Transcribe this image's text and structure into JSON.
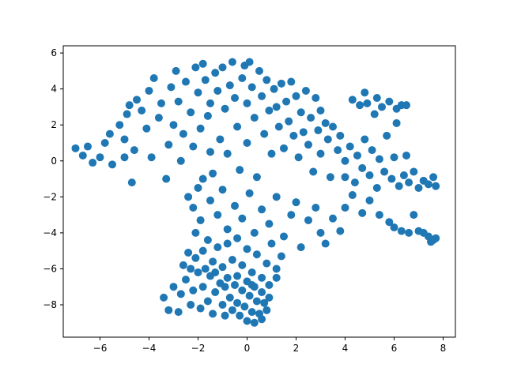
{
  "chart_data": {
    "type": "scatter",
    "title": "",
    "xlabel": "",
    "ylabel": "",
    "xlim": [
      -7.5,
      8.5
    ],
    "ylim": [
      -9.8,
      6.4
    ],
    "x_ticks": [
      -6,
      -4,
      -2,
      0,
      2,
      4,
      6,
      8
    ],
    "y_ticks": [
      -8,
      -6,
      -4,
      -2,
      0,
      2,
      4,
      6
    ],
    "x_tick_labels": [
      "−6",
      "−4",
      "−2",
      "0",
      "2",
      "4",
      "6",
      "8"
    ],
    "y_tick_labels": [
      "−8",
      "−6",
      "−4",
      "−2",
      "0",
      "2",
      "4",
      "6"
    ],
    "grid": false,
    "legend": "none",
    "marker_color": "#1f77b4",
    "marker": "circle",
    "series": [
      {
        "points": [
          [
            -7.0,
            0.7
          ],
          [
            -6.7,
            0.3
          ],
          [
            -6.5,
            0.8
          ],
          [
            -6.3,
            -0.1
          ],
          [
            -6.0,
            0.2
          ],
          [
            -5.8,
            1.0
          ],
          [
            -5.6,
            1.5
          ],
          [
            -5.5,
            -0.2
          ],
          [
            -5.2,
            2.0
          ],
          [
            -5.0,
            1.2
          ],
          [
            -5.0,
            0.2
          ],
          [
            -4.9,
            2.6
          ],
          [
            -4.8,
            3.1
          ],
          [
            -4.7,
            -1.2
          ],
          [
            -4.6,
            0.6
          ],
          [
            -4.5,
            3.4
          ],
          [
            -4.3,
            2.8
          ],
          [
            -4.1,
            1.8
          ],
          [
            -4.0,
            3.9
          ],
          [
            -3.9,
            0.2
          ],
          [
            -3.8,
            4.6
          ],
          [
            -3.6,
            2.4
          ],
          [
            -3.5,
            3.2
          ],
          [
            -3.3,
            -1.0
          ],
          [
            -3.2,
            0.9
          ],
          [
            -3.1,
            4.1
          ],
          [
            -3.0,
            2.0
          ],
          [
            -2.9,
            5.0
          ],
          [
            -2.8,
            3.3
          ],
          [
            -2.7,
            0.0
          ],
          [
            -2.6,
            1.5
          ],
          [
            -2.5,
            4.4
          ],
          [
            -2.4,
            -2.0
          ],
          [
            -2.3,
            2.7
          ],
          [
            -2.2,
            0.8
          ],
          [
            -2.1,
            5.2
          ],
          [
            -2.0,
            3.8
          ],
          [
            -2.0,
            -1.5
          ],
          [
            -1.9,
            1.8
          ],
          [
            -1.8,
            5.4
          ],
          [
            -1.7,
            4.5
          ],
          [
            -1.6,
            2.5
          ],
          [
            -1.5,
            0.5
          ],
          [
            -1.5,
            3.2
          ],
          [
            -1.4,
            -0.7
          ],
          [
            -1.3,
            4.9
          ],
          [
            -1.2,
            3.9
          ],
          [
            -1.1,
            1.2
          ],
          [
            -1.0,
            5.2
          ],
          [
            -0.9,
            2.9
          ],
          [
            -0.8,
            0.4
          ],
          [
            -0.7,
            4.2
          ],
          [
            -0.6,
            5.5
          ],
          [
            -0.5,
            3.5
          ],
          [
            -0.4,
            1.9
          ],
          [
            -0.3,
            -0.5
          ],
          [
            -0.2,
            4.6
          ],
          [
            -0.1,
            5.3
          ],
          [
            0.0,
            3.2
          ],
          [
            0.0,
            1.0
          ],
          [
            0.1,
            5.5
          ],
          [
            0.2,
            4.1
          ],
          [
            0.3,
            2.4
          ],
          [
            0.4,
            -0.9
          ],
          [
            0.5,
            5.0
          ],
          [
            0.6,
            3.6
          ],
          [
            0.7,
            1.5
          ],
          [
            0.8,
            4.5
          ],
          [
            0.9,
            2.8
          ],
          [
            1.0,
            0.4
          ],
          [
            1.1,
            4.0
          ],
          [
            1.2,
            3.0
          ],
          [
            1.3,
            1.9
          ],
          [
            1.4,
            4.3
          ],
          [
            1.5,
            0.7
          ],
          [
            1.6,
            3.3
          ],
          [
            1.7,
            2.2
          ],
          [
            1.8,
            4.4
          ],
          [
            1.9,
            1.4
          ],
          [
            2.0,
            3.6
          ],
          [
            2.1,
            0.2
          ],
          [
            2.2,
            2.7
          ],
          [
            2.3,
            1.6
          ],
          [
            2.4,
            3.9
          ],
          [
            2.5,
            0.9
          ],
          [
            2.6,
            2.4
          ],
          [
            2.7,
            -0.6
          ],
          [
            2.8,
            3.5
          ],
          [
            2.9,
            1.7
          ],
          [
            3.0,
            2.8
          ],
          [
            3.0,
            0.4
          ],
          [
            3.2,
            2.1
          ],
          [
            3.3,
            1.2
          ],
          [
            3.4,
            -0.9
          ],
          [
            3.5,
            1.9
          ],
          [
            3.7,
            0.6
          ],
          [
            3.8,
            1.4
          ],
          [
            4.0,
            0.0
          ],
          [
            4.0,
            -0.9
          ],
          [
            4.2,
            0.8
          ],
          [
            4.3,
            3.4
          ],
          [
            4.4,
            -1.2
          ],
          [
            4.5,
            0.3
          ],
          [
            4.6,
            3.1
          ],
          [
            4.7,
            -0.4
          ],
          [
            4.8,
            1.2
          ],
          [
            4.9,
            3.2
          ],
          [
            5.0,
            -0.8
          ],
          [
            5.1,
            0.6
          ],
          [
            5.2,
            2.6
          ],
          [
            5.3,
            -1.5
          ],
          [
            5.4,
            0.1
          ],
          [
            5.5,
            3.0
          ],
          [
            5.6,
            -0.6
          ],
          [
            5.7,
            1.4
          ],
          [
            5.8,
            3.3
          ],
          [
            5.9,
            -1.0
          ],
          [
            6.0,
            0.2
          ],
          [
            6.1,
            2.9
          ],
          [
            6.2,
            -1.4
          ],
          [
            6.3,
            3.1
          ],
          [
            6.4,
            -0.8
          ],
          [
            6.5,
            0.3
          ],
          [
            6.6,
            -1.2
          ],
          [
            6.8,
            -0.6
          ],
          [
            7.0,
            -1.5
          ],
          [
            7.2,
            -1.1
          ],
          [
            7.4,
            -1.3
          ],
          [
            7.6,
            -0.9
          ],
          [
            7.7,
            -1.4
          ],
          [
            4.8,
            3.8
          ],
          [
            5.3,
            3.5
          ],
          [
            6.1,
            2.1
          ],
          [
            6.5,
            3.1
          ],
          [
            -1.8,
            -1.0
          ],
          [
            -1.5,
            -2.2
          ],
          [
            -1.2,
            -3.0
          ],
          [
            -1.0,
            -1.6
          ],
          [
            -0.8,
            -3.8
          ],
          [
            -0.5,
            -2.5
          ],
          [
            -0.2,
            -3.2
          ],
          [
            0.1,
            -1.8
          ],
          [
            0.3,
            -4.0
          ],
          [
            0.6,
            -2.7
          ],
          [
            0.9,
            -3.5
          ],
          [
            1.2,
            -2.0
          ],
          [
            1.5,
            -4.2
          ],
          [
            1.8,
            -3.0
          ],
          [
            2.0,
            -2.3
          ],
          [
            2.2,
            -4.8
          ],
          [
            2.5,
            -3.3
          ],
          [
            2.8,
            -2.6
          ],
          [
            3.0,
            -4.0
          ],
          [
            3.2,
            -4.6
          ],
          [
            3.5,
            -3.2
          ],
          [
            3.8,
            -3.9
          ],
          [
            4.0,
            -2.6
          ],
          [
            4.3,
            -1.9
          ],
          [
            4.7,
            -2.9
          ],
          [
            5.0,
            -2.2
          ],
          [
            5.4,
            -3.0
          ],
          [
            5.8,
            -3.4
          ],
          [
            6.0,
            -3.7
          ],
          [
            6.3,
            -3.9
          ],
          [
            6.6,
            -4.0
          ],
          [
            6.8,
            -3.0
          ],
          [
            7.0,
            -3.9
          ],
          [
            7.2,
            -4.0
          ],
          [
            7.4,
            -4.2
          ],
          [
            7.5,
            -4.5
          ],
          [
            7.6,
            -4.4
          ],
          [
            7.7,
            -4.3
          ],
          [
            -2.2,
            -2.6
          ],
          [
            -2.1,
            -4.0
          ],
          [
            -1.9,
            -3.3
          ],
          [
            -1.8,
            -5.0
          ],
          [
            -1.6,
            -4.4
          ],
          [
            -1.4,
            -5.6
          ],
          [
            -1.2,
            -4.8
          ],
          [
            -1.0,
            -5.9
          ],
          [
            -0.8,
            -4.6
          ],
          [
            -0.6,
            -5.5
          ],
          [
            -0.4,
            -4.3
          ],
          [
            -0.2,
            -5.8
          ],
          [
            0.0,
            -4.9
          ],
          [
            0.2,
            -6.2
          ],
          [
            0.4,
            -5.2
          ],
          [
            0.6,
            -6.5
          ],
          [
            0.8,
            -5.7
          ],
          [
            1.0,
            -4.6
          ],
          [
            1.2,
            -6.0
          ],
          [
            1.4,
            -5.3
          ],
          [
            0.9,
            -6.9
          ],
          [
            1.2,
            -6.5
          ],
          [
            -3.4,
            -7.6
          ],
          [
            -3.2,
            -8.3
          ],
          [
            -3.0,
            -7.0
          ],
          [
            -2.8,
            -8.4
          ],
          [
            -2.7,
            -7.4
          ],
          [
            -2.5,
            -6.6
          ],
          [
            -2.3,
            -8.0
          ],
          [
            -2.2,
            -7.2
          ],
          [
            -2.0,
            -6.2
          ],
          [
            -1.9,
            -8.2
          ],
          [
            -1.8,
            -7.0
          ],
          [
            -1.6,
            -7.8
          ],
          [
            -1.5,
            -6.4
          ],
          [
            -1.4,
            -8.5
          ],
          [
            -1.3,
            -7.3
          ],
          [
            -1.1,
            -6.8
          ],
          [
            -1.0,
            -8.0
          ],
          [
            -0.9,
            -8.6
          ],
          [
            -0.8,
            -6.5
          ],
          [
            -0.7,
            -7.6
          ],
          [
            -0.6,
            -8.3
          ],
          [
            -0.5,
            -6.9
          ],
          [
            -0.4,
            -7.9
          ],
          [
            -0.3,
            -8.6
          ],
          [
            -0.2,
            -7.2
          ],
          [
            -0.1,
            -8.1
          ],
          [
            0.0,
            -6.7
          ],
          [
            0.0,
            -8.9
          ],
          [
            0.1,
            -7.5
          ],
          [
            0.2,
            -8.4
          ],
          [
            0.3,
            -7.0
          ],
          [
            0.3,
            -9.0
          ],
          [
            0.4,
            -7.8
          ],
          [
            0.5,
            -8.5
          ],
          [
            0.6,
            -7.3
          ],
          [
            0.6,
            -8.8
          ],
          [
            0.7,
            -7.9
          ],
          [
            0.8,
            -8.3
          ],
          [
            0.9,
            -7.6
          ],
          [
            -2.6,
            -5.8
          ],
          [
            -2.4,
            -5.1
          ],
          [
            -2.3,
            -6.0
          ],
          [
            -2.1,
            -5.4
          ],
          [
            -1.7,
            -6.0
          ],
          [
            -1.3,
            -6.2
          ],
          [
            -0.9,
            -7.0
          ],
          [
            -0.4,
            -6.4
          ],
          [
            0.2,
            -6.9
          ]
        ]
      }
    ]
  }
}
